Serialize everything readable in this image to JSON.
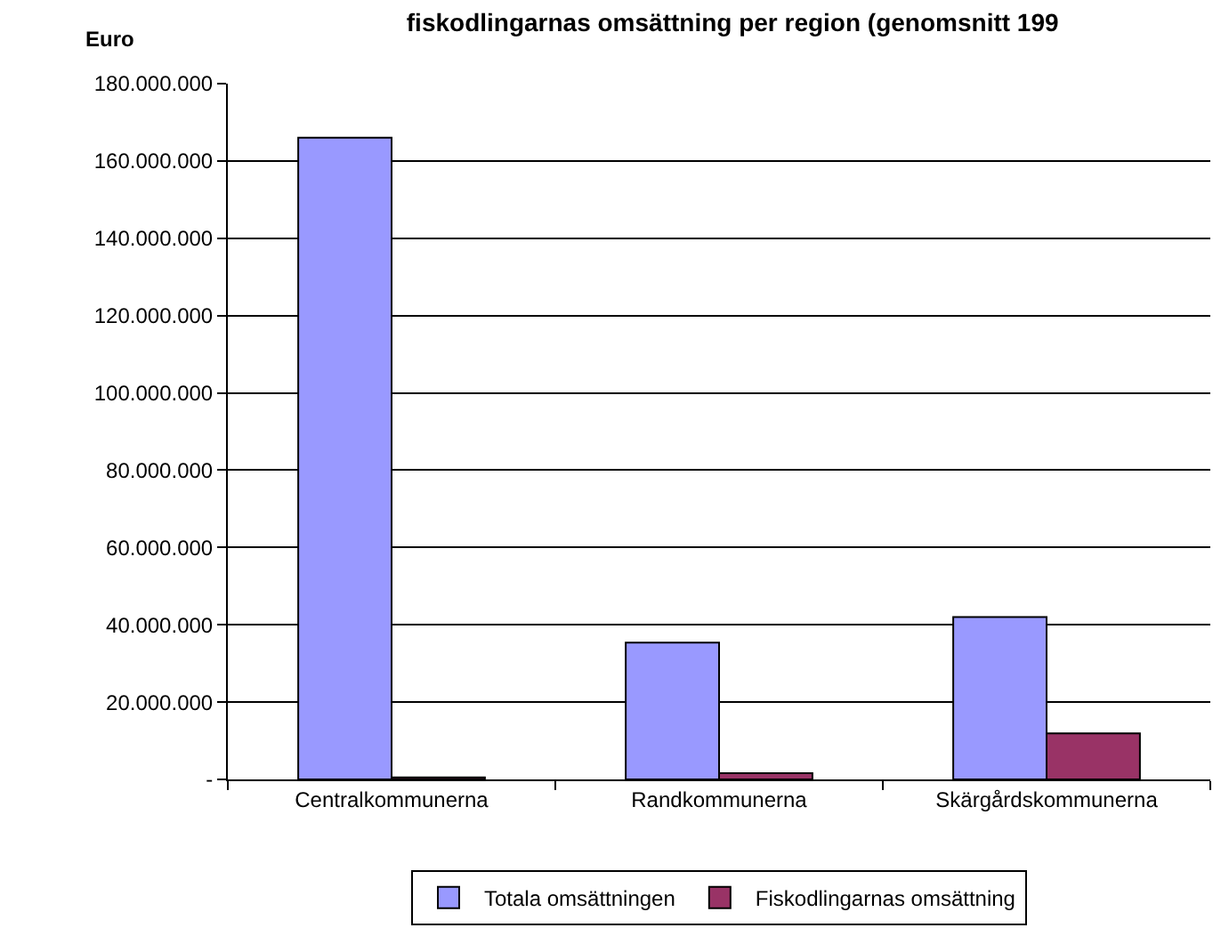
{
  "chart_data": {
    "type": "bar",
    "title": "fiskodlingarnas omsättning per region (genomsnitt 199",
    "ylabel": "Euro",
    "categories": [
      "Centralkommunerna",
      "Randkommunerna",
      "Skärgårdskommunerna"
    ],
    "series": [
      {
        "name": "Totala omsättningen",
        "color": "#9999ff",
        "values": [
          166000000,
          35400000,
          42000000
        ]
      },
      {
        "name": "Fiskodlingarnas omsättning",
        "color": "#993366",
        "values": [
          500000,
          1600000,
          11900000
        ]
      }
    ],
    "ylim": [
      0,
      180000000
    ],
    "yticks": [
      {
        "value": 0,
        "label": "-"
      },
      {
        "value": 20000000,
        "label": "20.000.000"
      },
      {
        "value": 40000000,
        "label": "40.000.000"
      },
      {
        "value": 60000000,
        "label": "60.000.000"
      },
      {
        "value": 80000000,
        "label": "80.000.000"
      },
      {
        "value": 100000000,
        "label": "100.000.000"
      },
      {
        "value": 120000000,
        "label": "120.000.000"
      },
      {
        "value": 140000000,
        "label": "140.000.000"
      },
      {
        "value": 160000000,
        "label": "160.000.000"
      },
      {
        "value": 180000000,
        "label": "180.000.000"
      }
    ],
    "grid": "y",
    "legend": "bottom"
  }
}
